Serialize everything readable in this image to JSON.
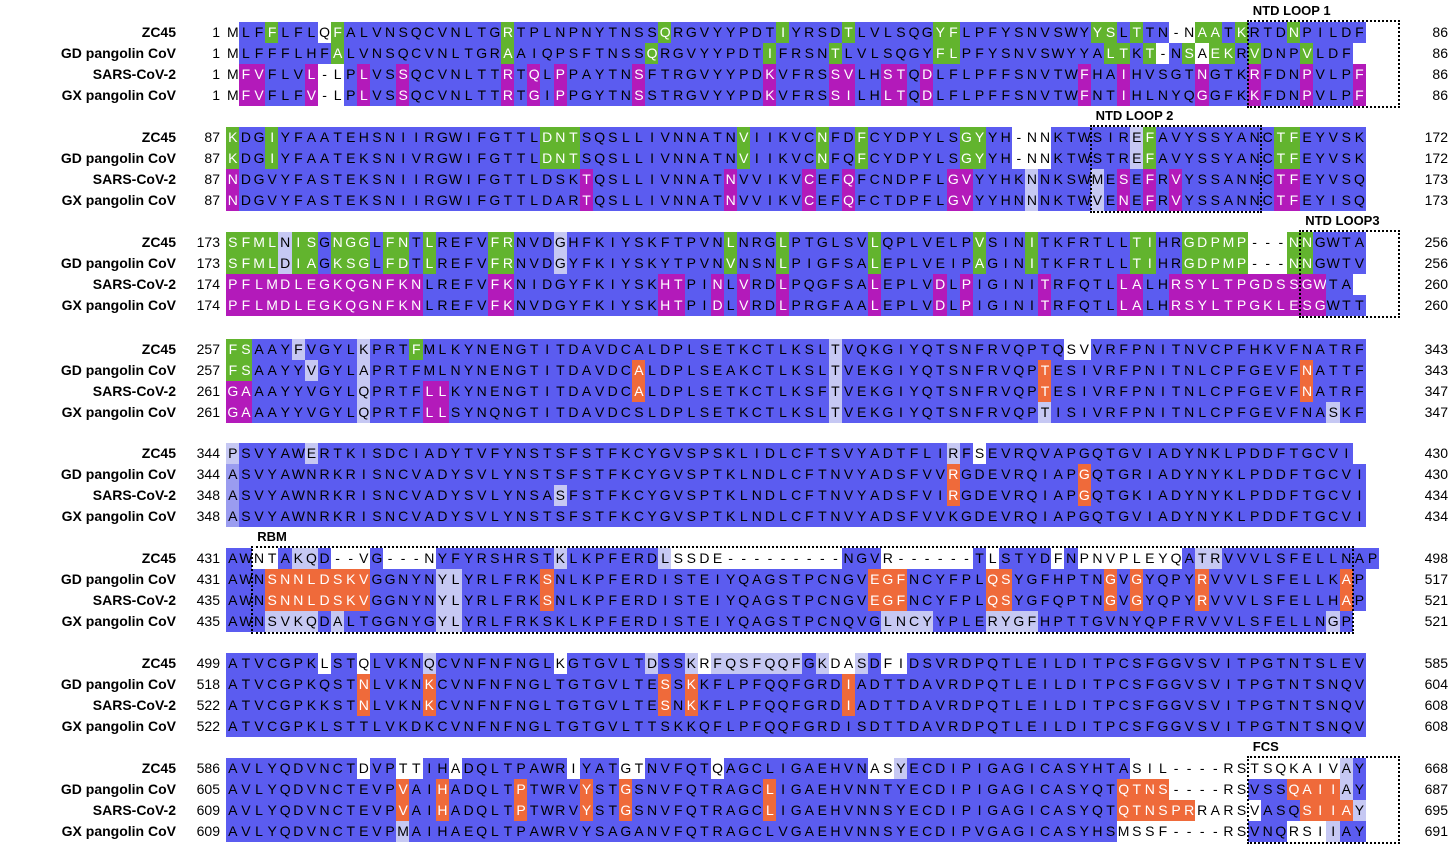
{
  "sequence_names": [
    "ZC45",
    "GD pangolin CoV",
    "SARS-CoV-2",
    "GX pangolin CoV"
  ],
  "colors": {
    "unconserved": "#ffffff",
    "low_identity": "#c6c8f3",
    "mid_identity": "#9a9cf0",
    "high_identity": "#5b5cf0",
    "green_highlight": "#62b42e",
    "magenta_highlight": "#b31aba",
    "orange_highlight": "#ef6a3a"
  },
  "regions": [
    {
      "label": "NTD LOOP 1",
      "block": 0,
      "start": 78,
      "end": 94
    },
    {
      "label": "NTD LOOP 2",
      "block": 1,
      "start": 66,
      "end": 78
    },
    {
      "label": "NTD LOOP3",
      "block": 2,
      "start": 82,
      "end": 101
    },
    {
      "label": "RBM",
      "block": 5,
      "start": 2,
      "end": 85
    },
    {
      "label": "FCS",
      "block": 7,
      "start": 78,
      "end": 99
    }
  ],
  "blocks": [
    {
      "rows": [
        {
          "name": "ZC45",
          "start": "1",
          "end": "86",
          "seq": "MLFFLFLQFALVNSQCVNLTGRTPLNPNYTNSSQRGVYYPDTIYRSDTLVLSQGYFLPFYSNVSWYYSLTTN-NAATKRTDNPILDF"
        },
        {
          "name": "GD pangolin CoV",
          "start": "1",
          "end": "86",
          "seq": "MLFFFLHFALVNSQCVNLTGRAAIQPSFTNSSQRGVYYPDTIFRSNTLVLSQGYFLPFYSNVSWYYALTKT-NSAEKRVDNPVLDF"
        },
        {
          "name": "SARS-CoV-2",
          "start": "1",
          "end": "86",
          "seq": "MFVFLVL-LPLVSSQCVNLTTRTQLPPAYTNSFTRGVYYPDKVFRSSVLHSTQDLFLPFFSNVTWFHAIHVSGTNGTKRFDNPVLPF"
        },
        {
          "name": "GX pangolin CoV",
          "start": "1",
          "end": "86",
          "seq": "MFVFLFV-LPLVSSQCVNLTTRTGIPPGYTNSSTRGVYYPDKVFRSSILHLTQDLFLPFFSNVTWFNTIHLNYQGGFKKFDNPVLPF"
        }
      ],
      "colors": [
        "033g3330g333333333333g33333333333g33333333g3333g333333gg3333333333gg3g33g-gg3g333g333333g",
        "03333333g333333333333g3333333333g33333333g3333g3333333gg33333333333gg3g33g-gg3g333g33333g",
        "0mm333m3-3m33m3333333m3m3m33333m333333333m3333mm33mm3m33333333333m33m33333m333m333m333mmm",
        "0mm333m3-3m33m3333333m3m3m33333m333333333m3333mm33mm3m33333333333m33m33333m333m333m333mmm"
      ]
    },
    {
      "rows": [
        {
          "name": "ZC45",
          "start": "87",
          "end": "172",
          "seq": "KDGIYFAATEHSNIIRGWIFGTTLDNTSQSLLIVNNATNVIIKVCNFDFCYDPYLSGYYH-NNKTWSIREFAVYSSYANCTFEYVSK"
        },
        {
          "name": "GD pangolin CoV",
          "start": "87",
          "end": "172",
          "seq": "KDGIYFAATEKSNIVRGWIFGTTLDNTSQSLLIVNNATNVIIKVCNFQFCYDPYLSGYYH-NNKTWSTREFAVYSSYANCTFEYVSK"
        },
        {
          "name": "SARS-CoV-2",
          "start": "87",
          "end": "173",
          "seq": "NDGVYFASTEKSNIIRGWIFGTTLDSKTQSLLIVNNATNVVIKVCEFQFCNDPFLGVYYHKNNKSWMESEFRVYSSANNCTFEYVSQ"
        },
        {
          "name": "GX pangolin CoV",
          "start": "87",
          "end": "173",
          "seq": "NDGVYFASTEKSNIIRGWIFGTTLDARTQSLLIVNNATNVVIKVCEFQFCTDPFLGVYYHNNNKTWVENEFRVYSSANNCTFEYISQ"
        }
      ],
      "colors": [
        "g33g33333333333333333333ggg333333333333g33333g33g3333333gg3330-3333331g333333333gg33333333g",
        "g33g33333333333333333333ggg333333333333g33333g33g3333333gg3330-3333331g333333333gg33333333g",
        "m33333333333333333333333333m3333333333m33333m33m3333333mm33331333313m3m3m3333333mm33333333m",
        "m33333333333333333333333333m3333333333m33333m33m3333333mm33331333313m3m3m3333333mm33333333m"
      ]
    },
    {
      "rows": [
        {
          "name": "ZC45",
          "start": "173",
          "end": "256",
          "seq": "SFMLNISGNGGLFNTLREFVFRNVDGHFKIYSKFTPVNLNRGLPTGLSVLQPLVELPVSINITKFRTLLTIHRGDPMP---NNGWTA"
        },
        {
          "name": "GD pangolin CoV",
          "start": "173",
          "end": "256",
          "seq": "SFMLDIAGKSGLFDTLREFVFRNVDGYFKIYSKYTPVNVNSNLPIGFSALEPLVEIPAGINITKFRTLLTIHRGDPMP---NNGWTV"
        },
        {
          "name": "SARS-CoV-2",
          "start": "174",
          "end": "260",
          "seq": "PFLMDLEGKQGNFKNLREFVFKNIDGYFKIYSKHTPINLVRDLPQGFSALEPLVDLPIGINITRFQTLLALHRSYLTPGDSSGWTA"
        },
        {
          "name": "GX pangolin CoV",
          "start": "174",
          "end": "260",
          "seq": "PFLMDLEGKQGNFKNLREFVFKNVDGYFKIYSKHTPIDLVRDLPRGFAALEPLVDLPIGINITRFQTLLALHRSYLTPGKLESGWTT"
        }
      ],
      "colors": [
        "gggg1gg3ggg3gg3g3333gg3331333333333333g333g333333g3333333g333g3333333gg33ggggg---gg33333",
        "gggg1gg3ggg3gg3g3333gg3331333333333333g333g333333g3333333g333g3333333gg33ggggg---gg33333",
        "mmmmmmmmmmmmmmm33333mm33333333333mm33m3m33m333333m3333m3m33333m33333mm33mmmmmmmmmmmm333",
        "mmmmmmmmmmmmmmm33333mm33333333333mm33m3m33m333333m3333m3m33333m33333mm33mmmmmmmmmmmm333"
      ]
    },
    {
      "rows": [
        {
          "name": "ZC45",
          "start": "257",
          "end": "343",
          "seq": "FSAAYFVGYLKPRTFMLKYNENGTITDAVDCALDPLSETKCTLKSLTVQKGIYQTSNFRVQPTQSVVRFPNITNVCPFHKVFNATRF"
        },
        {
          "name": "GD pangolin CoV",
          "start": "257",
          "end": "343",
          "seq": "FSAAYYVGYLAPRTFMLNYNENGTITDAVDCALDPLSEAKCTLKSLTVEKGIYQTSNFRVQPTESIVRFPNITNLCPFGEVFNATTF"
        },
        {
          "name": "SARS-CoV-2",
          "start": "261",
          "end": "347",
          "seq": "GAAAYYVGYLQPRTFLLKYNENGTITDAVDCALDPLSETKCTLKSFTVEKGIYQTSNFRVQPTESIVRFPNITNLCPFGEVFNATRF"
        },
        {
          "name": "GX pangolin CoV",
          "start": "261",
          "end": "347",
          "seq": "GAAAYYVGYLQPRTFLLSYNQNGTITDAVDCSLDPLSETKCTLKSLTVEKGIYQTSNFRVQPTISIVRFPNITNLCPFGEVFNASKF"
        }
      ],
      "colors": [
        "gg333133331333g33333333333333333333333333333331333333333333333330033333333333333333333",
        "gg33331333133333333333333333333o333333333333331333333333333333o3333333333333333333o3",
        "mm3333333313333mm33333333333333o333333333333331333333333333333o3333333333333333333o3",
        "mm3333333313333mm333333333333333333333333333331333333333333333133333333333333333333313"
      ]
    },
    {
      "rows": [
        {
          "name": "ZC45",
          "start": "344",
          "end": "430",
          "seq": "PSVYAWERTKISDCIADYTVFYNSTSFSTFKCYGVSPSKLIDLCFTSVYADTFLIRFSEVRQVAPGQTGVIADYNKLPDDFTGCVI"
        },
        {
          "name": "GD pangolin CoV",
          "start": "344",
          "end": "430",
          "seq": "ASVYAWNRKRISNCVADYSVLYNSTSFSTFKCYGVSPTKLNDLCFTNVYADSFVVRGDEVRQIAPGQTGRIADYNYKLPDDFTGCVI"
        },
        {
          "name": "SARS-CoV-2",
          "start": "348",
          "end": "434",
          "seq": "ASVYAWNRKRISNCVADYSVLYNSASFSTFKCYGVSPTKLNDLCFTNVYADSFVIRGDEVRQIAPGQTGKIADYNYKLPDDFTGCVI"
        },
        {
          "name": "GX pangolin CoV",
          "start": "348",
          "end": "434",
          "seq": "ASVYAWNRKRISNCVADYSVLYNSTSFSTFKCYGVSPTKLNDLCFTNVYADSFVVKGDEVRQIAPGQTGVIADYNYKLPDDFTGCVI"
        }
      ],
      "colors": [
        "1333331333333333333333333333333333333333333333333333333130333333333333333333333333333",
        "2333333333333333333333333333333333333333333333333333333o333333333o33333333333333333333",
        "2333333333333333333333333133333333333333333333333333333o333333333o33333333333333333333",
        "2333333333333333333333333333333333333333333333333333333333333333333333333333333333333"
      ]
    },
    {
      "rows": [
        {
          "name": "ZC45",
          "start": "431",
          "end": "498",
          "seq": "AWNTAKQD--VG---NYFYRSHRSTKLKPFERDLSSDE---------NGVR------TLSTYDFNPNVPLEYQATRVVVLSFELLNAP"
        },
        {
          "name": "GD pangolin CoV",
          "start": "431",
          "end": "517",
          "seq": "AWNSNNLDSKVGGNYNYLYRLFRKSNLKPFERDISTEIYQAGSTPCNGVEGFNCYFPLQSYGFHPTNGVGYQPYRVVVLSFELLKAP"
        },
        {
          "name": "SARS-CoV-2",
          "start": "435",
          "end": "521",
          "seq": "AWNSNNLDSKVGGNYNYLYRLFRKSNLKPFERDISTEIYQAGSTPCNGVEGFNCYFPLQSYGFQPTNGVGYQPYRVVVLSFELLHAP"
        },
        {
          "name": "GX pangolin CoV",
          "start": "435",
          "end": "521",
          "seq": "AWNSVKQDALTGGNYGYLYRLFRKSKLKPFERDISTEIYQAGSTPCNQVGLNCYYPLERYGFHPTTGVNYQPFRVVVLSFELLNGP"
        }
      ],
      "colors": [
        "330031133--33---3333333331333333310000---------3330------3033330300000000311333333333333",
        "333oooooooo3333311333333o333333333333333333333333ooo333333oo3333333o3o3333o3333333333o33",
        "333oooooooo3333311333333o333333333333333333333333ooo333333oo3333333o3o3333o3333333333o33",
        "33311113133333331133333333333333333333333333333333111133331111333333333333333333333313"
      ]
    },
    {
      "rows": [
        {
          "name": "ZC45",
          "start": "499",
          "end": "585",
          "seq": "ATVCGPKLSTQLVKNQCVNFNFNGLKGTGVLTDSSKRFQSFQQFGKDASDFIDSVRDPQTLEILDITPCSFGGVSVITPGTNTSLEV"
        },
        {
          "name": "GD pangolin CoV",
          "start": "518",
          "end": "604",
          "seq": "ATVCGPKQSTNLVKNKCVNFNFNGLTGTGVLTESSKKFLPFQQFGRDIADTTDAVRDPQTLEILDITPCSFGGVSVITPGTNTSNQV"
        },
        {
          "name": "SARS-CoV-2",
          "start": "522",
          "end": "608",
          "seq": "ATVCGPKKSTNLVKNKCVNFNFNGLTGTGVLTESNKKFLPFQQFGRDIADTTDAVRDPQTLEILDITPCSFGGVSVITPGTNTSNQV"
        },
        {
          "name": "GX pangolin CoV",
          "start": "522",
          "end": "608",
          "seq": "ATVCGPKLSTTLVKDKCVNFNFNGLTGTGVLTTSKKQFLPFQQFGRDISDTTDAVRDPQTLEILDITPCSFGGVSVITPGTNTSNQV"
        }
      ],
      "colors": [
        "33333330330333313333333330333333133101111111310013003333333333333333333333333333333333",
        "3333333333o3333o33333333333333333o3o33333333333o333333333333333333333333333333333333333",
        "3333333333o3333o33333333333333333o3o33333333333o333333333333333333333333333333333333333",
        "333333333333333333333333333333333333333333333333333333333333333333333333333333333333333"
      ]
    },
    {
      "rows": [
        {
          "name": "ZC45",
          "start": "586",
          "end": "668",
          "seq": "AVLYQDVNCTDVPTTIHADQLTPAWRIYATGTNVFQTQAGCLIGAEHVNASYECDIPIGAGICASYHTASIL----RSTSQKAIVAY"
        },
        {
          "name": "GD pangolin CoV",
          "start": "605",
          "end": "687",
          "seq": "AVLYQDVNCTEVPVAIHADQLTPTWRVYSTGSNVFQTRAGCLIGAEHVNNTYECDIPIGAGICASYQTQTNS----RSVSSQAIIAY"
        },
        {
          "name": "SARS-CoV-2",
          "start": "609",
          "end": "695",
          "seq": "AVLYQDVNCTEVPVAIHADQLTPTWRVYSTGSNVFQTRAGCLIGAEHVNNSYECDIPIGAGICASYQTQTNSPRRARSVASQSIIAY"
        },
        {
          "name": "GX pangolin CoV",
          "start": "609",
          "end": "691",
          "seq": "AVLYQDVNCTEVPMAIHAEQLTPAWRVYSAGANVFQTRAGCLVGAEHVNNSYECDIPVGAGICASYHSMSSF----RSVNQRSIIAY"
        }
      ],
      "colors": [
        "3333333333033003303333333303330033333033333333333001333333333333333330000000----0000013333",
        "3333333333333o33o33333o3333o33o3333333333o33333333333333333333333333oooooo----333oooo1333",
        "3333333333333o33o33333o3333o33o3333333333o33333333333333333333333333oooooo00000333oooo1333",
        "33333333333331333333333333333333333333333333333333333333333333333333000000----3330001333"
      ]
    }
  ]
}
